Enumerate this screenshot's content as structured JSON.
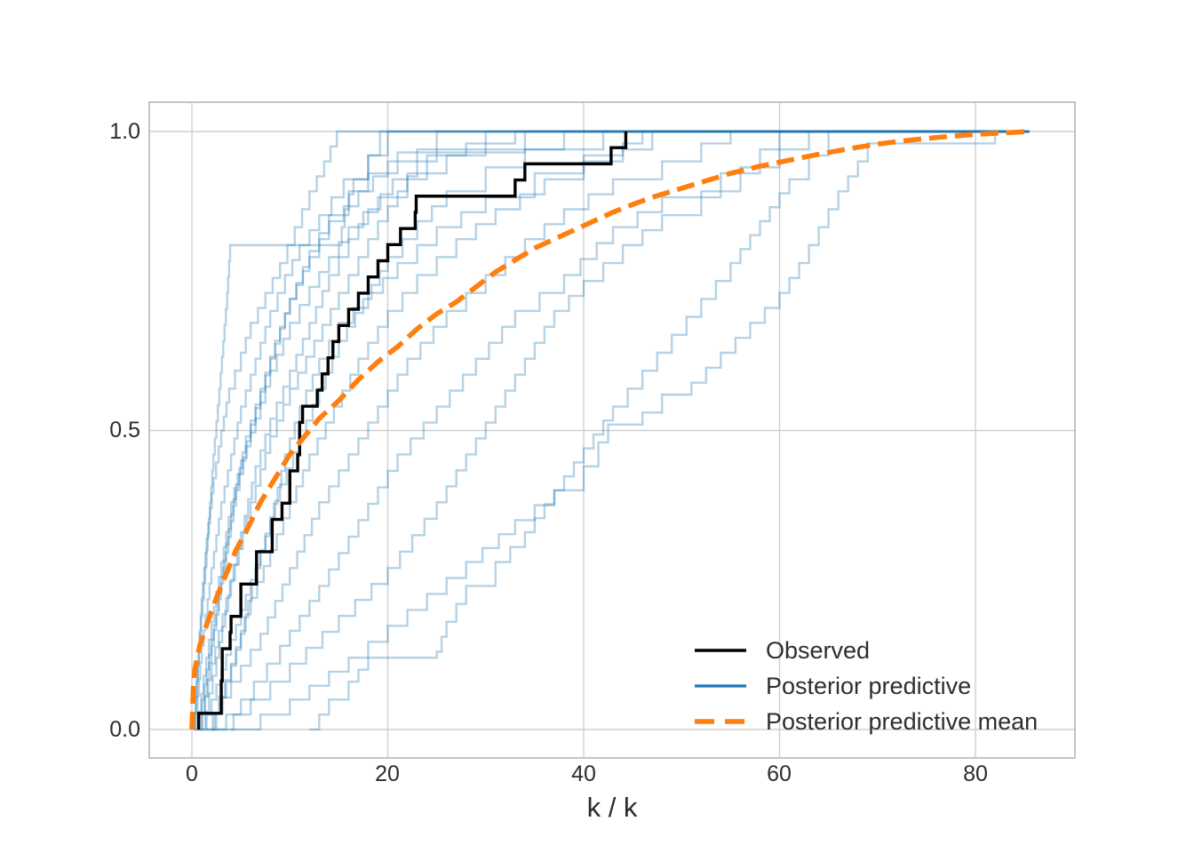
{
  "figure": {
    "background": "#ffffff",
    "grid_color": "#cfcfcf",
    "spine_color": "#c4c4c4",
    "text_color": "#2d2d2d"
  },
  "axes": {
    "xlabel": "k / k",
    "x_ticks": {
      "values": [
        0,
        20,
        40,
        60,
        80
      ],
      "labels": [
        "0",
        "20",
        "40",
        "60",
        "80"
      ]
    },
    "y_ticks": {
      "values": [
        0,
        0.5,
        1
      ],
      "labels": [
        "0.0",
        "0.5",
        "1.0"
      ]
    }
  },
  "legend": {
    "position": "lower right",
    "entries": [
      {
        "label": "Observed",
        "color": "#000000",
        "style": "solid",
        "width": 3.4
      },
      {
        "label": "Posterior predictive",
        "color": "#1f77b4",
        "style": "solid",
        "width": 3.2
      },
      {
        "label": "Posterior predictive mean",
        "color": "#ff7f0e",
        "style": "dashed",
        "width": 5.5
      }
    ]
  },
  "chart_data": {
    "type": "line",
    "subtype": "ecdf-posterior-predictive-check",
    "title": "",
    "xlabel": "k / k",
    "ylabel": "",
    "xlim": [
      -4.4,
      90.2
    ],
    "ylim": [
      -0.048,
      1.049
    ],
    "grid": true,
    "legend_position": "lower right",
    "sample_size_n": 37,
    "observed": {
      "name": "Observed",
      "color": "#000000",
      "jump_x_values": [
        0.7,
        3.0,
        3.0,
        3.1,
        3.1,
        3.9,
        4.0,
        5.0,
        5.0,
        6.6,
        6.6,
        8.2,
        8.2,
        9.2,
        10.0,
        10.0,
        10.8,
        11.0,
        11.0,
        11.3,
        12.8,
        13.3,
        13.9,
        14.4,
        15.0,
        16.0,
        17.0,
        18.0,
        19.0,
        20.0,
        21.3,
        22.8,
        22.9,
        33.0,
        34.0,
        42.8,
        44.3
      ]
    },
    "posterior_predictive": {
      "name": "Posterior predictive",
      "color": "#1f77b4",
      "alpha": 0.33,
      "extend_flat_to_x": 85.5,
      "curves": [
        [
          [
            0.2,
            0
          ],
          [
            0.6,
            0.11
          ],
          [
            1,
            0.22
          ],
          [
            1.5,
            0.32
          ],
          [
            2.2,
            0.42
          ],
          [
            3,
            0.5
          ],
          [
            3.8,
            0.57
          ],
          [
            5,
            0.63
          ],
          [
            6,
            0.68
          ],
          [
            7.5,
            0.73
          ],
          [
            9,
            0.78
          ],
          [
            10.5,
            0.84
          ],
          [
            12,
            0.9
          ],
          [
            13.5,
            0.95
          ],
          [
            14.8,
            1
          ]
        ],
        [
          [
            0.3,
            0
          ],
          [
            1,
            0.14
          ],
          [
            2,
            0.27
          ],
          [
            3,
            0.38
          ],
          [
            4,
            0.46
          ],
          [
            5,
            0.54
          ],
          [
            6.5,
            0.62
          ],
          [
            8,
            0.7
          ],
          [
            9.5,
            0.76
          ],
          [
            11,
            0.81
          ],
          [
            13,
            0.86
          ],
          [
            15.5,
            0.92
          ],
          [
            18,
            0.96
          ],
          [
            20,
            1
          ]
        ],
        [
          [
            0.2,
            0
          ],
          [
            0.8,
            0.16
          ],
          [
            1.5,
            0.3
          ],
          [
            2.2,
            0.46
          ],
          [
            2.8,
            0.57
          ],
          [
            3.2,
            0.65
          ],
          [
            3.6,
            0.73
          ],
          [
            3.9,
            0.81
          ],
          [
            15,
            0.81
          ],
          [
            15.6,
            0.87
          ],
          [
            16.5,
            0.92
          ],
          [
            18,
            0.96
          ],
          [
            19.2,
            1
          ]
        ],
        [
          [
            0.5,
            0
          ],
          [
            1.5,
            0.1
          ],
          [
            2.5,
            0.2
          ],
          [
            3.5,
            0.31
          ],
          [
            4.5,
            0.41
          ],
          [
            5.5,
            0.49
          ],
          [
            7,
            0.57
          ],
          [
            8.5,
            0.65
          ],
          [
            10,
            0.72
          ],
          [
            12,
            0.79
          ],
          [
            14,
            0.85
          ],
          [
            17,
            0.9
          ],
          [
            20,
            0.95
          ],
          [
            23,
            0.97
          ],
          [
            25,
            1
          ]
        ],
        [
          [
            0.7,
            0
          ],
          [
            2,
            0.11
          ],
          [
            3.5,
            0.22
          ],
          [
            5,
            0.33
          ],
          [
            6.5,
            0.44
          ],
          [
            8,
            0.52
          ],
          [
            10,
            0.6
          ],
          [
            12,
            0.68
          ],
          [
            14,
            0.76
          ],
          [
            16,
            0.82
          ],
          [
            18,
            0.87
          ],
          [
            20.5,
            0.92
          ],
          [
            24,
            0.96
          ],
          [
            28,
            0.98
          ],
          [
            30,
            1
          ]
        ],
        [
          [
            1,
            0
          ],
          [
            2.5,
            0.12
          ],
          [
            4,
            0.25
          ],
          [
            6,
            0.38
          ],
          [
            8,
            0.49
          ],
          [
            10,
            0.57
          ],
          [
            12.5,
            0.65
          ],
          [
            15,
            0.73
          ],
          [
            17,
            0.79
          ],
          [
            19,
            0.85
          ],
          [
            21,
            0.9
          ],
          [
            23,
            0.95
          ],
          [
            25,
            0.97
          ],
          [
            40,
            0.97
          ],
          [
            42,
            1
          ]
        ],
        [
          [
            1,
            0
          ],
          [
            3,
            0.1
          ],
          [
            5,
            0.2
          ],
          [
            7,
            0.3
          ],
          [
            9,
            0.41
          ],
          [
            11,
            0.49
          ],
          [
            13,
            0.57
          ],
          [
            15,
            0.65
          ],
          [
            17.5,
            0.72
          ],
          [
            20,
            0.79
          ],
          [
            23,
            0.85
          ],
          [
            26,
            0.9
          ],
          [
            30,
            0.94
          ],
          [
            34,
            0.97
          ],
          [
            38,
            1
          ]
        ],
        [
          [
            2,
            0
          ],
          [
            3.5,
            0.08
          ],
          [
            5,
            0.16
          ],
          [
            6.5,
            0.27
          ],
          [
            8,
            0.35
          ],
          [
            9.5,
            0.46
          ],
          [
            11,
            0.54
          ],
          [
            13,
            0.62
          ],
          [
            15,
            0.68
          ],
          [
            18,
            0.73
          ],
          [
            21,
            0.78
          ],
          [
            25,
            0.84
          ],
          [
            30,
            0.89
          ],
          [
            35,
            0.93
          ],
          [
            40,
            0.96
          ],
          [
            44,
            0.98
          ],
          [
            46,
            1
          ]
        ],
        [
          [
            1.5,
            0
          ],
          [
            4,
            0.08
          ],
          [
            7,
            0.16
          ],
          [
            10,
            0.27
          ],
          [
            13,
            0.38
          ],
          [
            16,
            0.46
          ],
          [
            19,
            0.54
          ],
          [
            22,
            0.62
          ],
          [
            26,
            0.7
          ],
          [
            30,
            0.76
          ],
          [
            34,
            0.82
          ],
          [
            38,
            0.87
          ],
          [
            43,
            0.92
          ],
          [
            48,
            0.95
          ],
          [
            52,
            0.98
          ],
          [
            55,
            1
          ]
        ],
        [
          [
            2,
            0
          ],
          [
            5,
            0.05
          ],
          [
            9,
            0.14
          ],
          [
            13,
            0.24
          ],
          [
            17,
            0.35
          ],
          [
            21,
            0.46
          ],
          [
            25,
            0.54
          ],
          [
            29,
            0.62
          ],
          [
            33,
            0.7
          ],
          [
            38,
            0.76
          ],
          [
            43,
            0.84
          ],
          [
            48,
            0.89
          ],
          [
            54,
            0.93
          ],
          [
            58,
            0.97
          ],
          [
            60,
            1
          ]
        ],
        [
          [
            12,
            0
          ],
          [
            14,
            0.05
          ],
          [
            16,
            0.08
          ],
          [
            17,
            0.1
          ],
          [
            18,
            0.12
          ],
          [
            25,
            0.13
          ],
          [
            26,
            0.18
          ],
          [
            28,
            0.24
          ],
          [
            31,
            0.28
          ],
          [
            34,
            0.33
          ],
          [
            37,
            0.4
          ],
          [
            40,
            0.47
          ],
          [
            43,
            0.54
          ],
          [
            46,
            0.6
          ],
          [
            49,
            0.66
          ],
          [
            52,
            0.72
          ],
          [
            55,
            0.78
          ],
          [
            58,
            0.85
          ],
          [
            61,
            0.92
          ],
          [
            63,
            0.96
          ],
          [
            65,
            1
          ]
        ],
        [
          [
            4,
            0
          ],
          [
            10,
            0.05
          ],
          [
            16,
            0.12
          ],
          [
            22,
            0.2
          ],
          [
            28,
            0.28
          ],
          [
            33,
            0.35
          ],
          [
            37,
            0.4
          ],
          [
            40,
            0.44
          ],
          [
            41.5,
            0.48
          ],
          [
            42.5,
            0.51
          ],
          [
            46,
            0.53
          ],
          [
            48,
            0.56
          ],
          [
            51,
            0.58
          ],
          [
            54,
            0.63
          ],
          [
            57,
            0.68
          ],
          [
            60,
            0.73
          ],
          [
            62,
            0.78
          ],
          [
            64,
            0.84
          ],
          [
            66,
            0.9
          ],
          [
            68,
            0.95
          ],
          [
            69,
            0.98
          ],
          [
            81,
            0.98
          ],
          [
            82,
            1
          ]
        ],
        [
          [
            2.5,
            0
          ],
          [
            6,
            0.05
          ],
          [
            10,
            0.11
          ],
          [
            15,
            0.19
          ],
          [
            20,
            0.27
          ],
          [
            25,
            0.38
          ],
          [
            28,
            0.46
          ],
          [
            31,
            0.54
          ],
          [
            34,
            0.62
          ],
          [
            37,
            0.7
          ],
          [
            40,
            0.75
          ],
          [
            44,
            0.81
          ],
          [
            48,
            0.86
          ],
          [
            52,
            0.9
          ],
          [
            56,
            0.94
          ],
          [
            60,
            0.97
          ],
          [
            63,
            1
          ]
        ],
        [
          [
            1.5,
            0
          ],
          [
            4,
            0.11
          ],
          [
            6,
            0.22
          ],
          [
            8,
            0.3
          ],
          [
            10,
            0.38
          ],
          [
            12,
            0.46
          ],
          [
            14.5,
            0.54
          ],
          [
            17,
            0.62
          ],
          [
            20,
            0.7
          ],
          [
            23,
            0.76
          ],
          [
            27,
            0.82
          ],
          [
            31,
            0.87
          ],
          [
            36,
            0.92
          ],
          [
            40,
            0.95
          ],
          [
            44,
            0.97
          ],
          [
            47,
            1
          ]
        ],
        [
          [
            0.5,
            0
          ],
          [
            1.2,
            0.09
          ],
          [
            2,
            0.18
          ],
          [
            3,
            0.28
          ],
          [
            4,
            0.38
          ],
          [
            5,
            0.45
          ],
          [
            6.5,
            0.52
          ],
          [
            8,
            0.6
          ],
          [
            10,
            0.68
          ],
          [
            12,
            0.74
          ],
          [
            14,
            0.79
          ],
          [
            16,
            0.84
          ],
          [
            19,
            0.89
          ],
          [
            22,
            0.93
          ],
          [
            26,
            0.96
          ],
          [
            30,
            0.98
          ],
          [
            33,
            1
          ]
        ],
        [
          [
            0.8,
            0
          ],
          [
            2,
            0.14
          ],
          [
            3.2,
            0.27
          ],
          [
            4.5,
            0.4
          ],
          [
            6,
            0.51
          ],
          [
            8,
            0.62
          ],
          [
            10,
            0.72
          ],
          [
            12,
            0.8
          ],
          [
            14,
            0.86
          ],
          [
            16,
            0.9
          ],
          [
            18,
            0.93
          ],
          [
            21,
            0.965
          ],
          [
            33,
            0.965
          ],
          [
            34,
            1
          ]
        ]
      ]
    },
    "posterior_predictive_mean": {
      "name": "Posterior predictive mean",
      "color": "#ff7f0e",
      "points": [
        [
          0,
          0
        ],
        [
          0.15,
          0.07
        ],
        [
          0.3,
          0.1
        ],
        [
          0.8,
          0.14
        ],
        [
          1.5,
          0.175
        ],
        [
          2.5,
          0.22
        ],
        [
          3.5,
          0.26
        ],
        [
          4.5,
          0.3
        ],
        [
          5.5,
          0.33
        ],
        [
          7,
          0.38
        ],
        [
          8.5,
          0.42
        ],
        [
          10,
          0.46
        ],
        [
          11.5,
          0.49
        ],
        [
          13,
          0.52
        ],
        [
          15,
          0.55
        ],
        [
          17,
          0.585
        ],
        [
          19,
          0.615
        ],
        [
          21,
          0.64
        ],
        [
          23,
          0.67
        ],
        [
          25,
          0.695
        ],
        [
          27,
          0.715
        ],
        [
          29,
          0.74
        ],
        [
          31,
          0.765
        ],
        [
          33,
          0.785
        ],
        [
          35,
          0.805
        ],
        [
          37,
          0.82
        ],
        [
          39,
          0.835
        ],
        [
          41,
          0.85
        ],
        [
          43,
          0.865
        ],
        [
          45,
          0.878
        ],
        [
          47,
          0.89
        ],
        [
          49,
          0.9
        ],
        [
          52,
          0.915
        ],
        [
          55,
          0.93
        ],
        [
          58,
          0.942
        ],
        [
          61,
          0.952
        ],
        [
          64,
          0.962
        ],
        [
          67,
          0.971
        ],
        [
          70,
          0.979
        ],
        [
          73,
          0.985
        ],
        [
          76,
          0.99
        ],
        [
          79,
          0.994
        ],
        [
          82,
          0.997
        ],
        [
          85.5,
          1
        ]
      ]
    }
  }
}
